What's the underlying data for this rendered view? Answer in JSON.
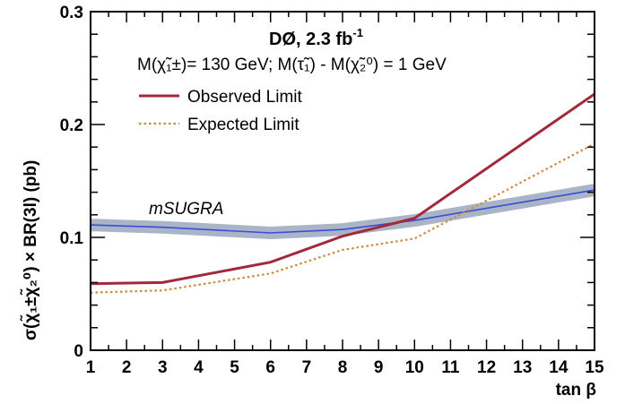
{
  "chart_data": {
    "type": "line",
    "xlabel": "tan β",
    "ylabel": "σ(χ̃₁±χ̃₂⁰) × BR(3l) (pb)",
    "xlim": [
      1,
      15
    ],
    "ylim": [
      0,
      0.3
    ],
    "x_ticks": [
      "1",
      "2",
      "3",
      "4",
      "5",
      "6",
      "7",
      "8",
      "9",
      "10",
      "11",
      "12",
      "13",
      "14",
      "15"
    ],
    "y_ticks": [
      "0",
      "0.1",
      "0.2",
      "0.3"
    ],
    "annotation": {
      "title": "DØ, 2.3 fb",
      "title_sup": "-1",
      "mass_line": "M(χ̃₁±)= 130 GeV; M(τ̃₁) - M(χ̃₂⁰) = 1 GeV"
    },
    "series": [
      {
        "name": "Observed Limit",
        "color": "#a3293a",
        "style": "solid",
        "x": [
          1,
          3,
          6,
          8,
          10,
          15
        ],
        "y": [
          0.059,
          0.06,
          0.078,
          0.101,
          0.117,
          0.227
        ]
      },
      {
        "name": "Expected Limit",
        "color": "#cc8a3c",
        "style": "dotted",
        "x": [
          1,
          3,
          6,
          8,
          10,
          15
        ],
        "y": [
          0.051,
          0.053,
          0.068,
          0.089,
          0.099,
          0.183
        ]
      },
      {
        "name": "mSUGRA",
        "color": "#3a4bd6",
        "band_color": "#a9b5c6",
        "style": "band",
        "x": [
          1,
          3,
          6,
          8,
          10,
          15
        ],
        "y": [
          0.111,
          0.109,
          0.104,
          0.107,
          0.115,
          0.142
        ]
      }
    ],
    "legend": [
      {
        "label": "Observed Limit",
        "color": "#a3293a",
        "style": "solid"
      },
      {
        "label": "Expected Limit",
        "color": "#cc8a3c",
        "style": "dotted"
      }
    ],
    "grid": false,
    "legend_position": "top-center"
  }
}
